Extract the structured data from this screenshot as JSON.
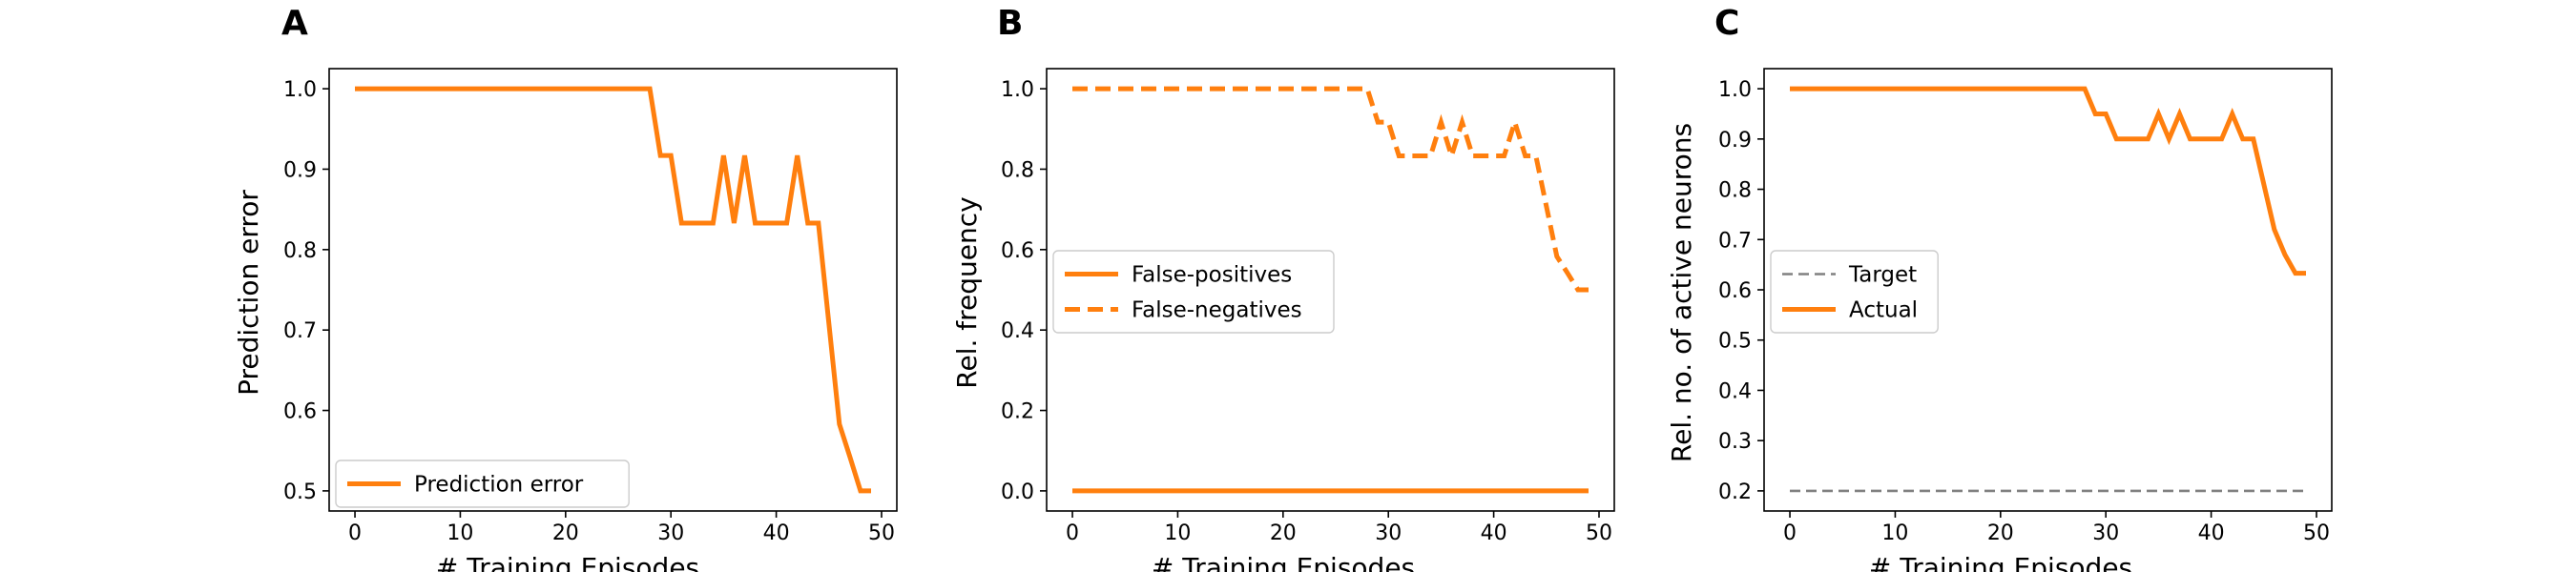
{
  "figure": {
    "colors": {
      "series": "#ff7f0e",
      "target": "#808080"
    }
  },
  "chart_data": [
    {
      "type": "line",
      "panel": "A",
      "xlabel": "# Training Episodes",
      "ylabel": "Prediction error",
      "xlim": [
        -2.45,
        51.45
      ],
      "ylim": [
        0.475,
        1.025
      ],
      "xticks": [
        0,
        10,
        20,
        30,
        40,
        50
      ],
      "yticks": [
        0.5,
        0.6,
        0.7,
        0.8,
        0.9,
        1.0
      ],
      "ytick_labels": [
        "0.5",
        "0.6",
        "0.7",
        "0.8",
        "0.9",
        "1.0"
      ],
      "grid": false,
      "legend_position": "lower-left",
      "x": [
        0,
        1,
        2,
        3,
        4,
        5,
        6,
        7,
        8,
        9,
        10,
        11,
        12,
        13,
        14,
        15,
        16,
        17,
        18,
        19,
        20,
        21,
        22,
        23,
        24,
        25,
        26,
        27,
        28,
        29,
        30,
        31,
        32,
        33,
        34,
        35,
        36,
        37,
        38,
        39,
        40,
        41,
        42,
        43,
        44,
        45,
        46,
        47,
        48,
        49
      ],
      "series": [
        {
          "name": "Prediction error",
          "style": "solid",
          "color": "#ff7f0e",
          "values": [
            1,
            1,
            1,
            1,
            1,
            1,
            1,
            1,
            1,
            1,
            1,
            1,
            1,
            1,
            1,
            1,
            1,
            1,
            1,
            1,
            1,
            1,
            1,
            1,
            1,
            1,
            1,
            1,
            1,
            0.917,
            0.917,
            0.833,
            0.833,
            0.833,
            0.833,
            0.917,
            0.833,
            0.917,
            0.833,
            0.833,
            0.833,
            0.833,
            0.917,
            0.833,
            0.833,
            0.708,
            0.583,
            0.542,
            0.5,
            0.5
          ]
        }
      ]
    },
    {
      "type": "line",
      "panel": "B",
      "xlabel": "# Training Episodes",
      "ylabel": "Rel. frequency",
      "xlim": [
        -2.45,
        51.45
      ],
      "ylim": [
        -0.05,
        1.05
      ],
      "xticks": [
        0,
        10,
        20,
        30,
        40,
        50
      ],
      "yticks": [
        0.0,
        0.2,
        0.4,
        0.6,
        0.8,
        1.0
      ],
      "ytick_labels": [
        "0.0",
        "0.2",
        "0.4",
        "0.6",
        "0.8",
        "1.0"
      ],
      "grid": false,
      "legend_position": "center-left",
      "x": [
        0,
        1,
        2,
        3,
        4,
        5,
        6,
        7,
        8,
        9,
        10,
        11,
        12,
        13,
        14,
        15,
        16,
        17,
        18,
        19,
        20,
        21,
        22,
        23,
        24,
        25,
        26,
        27,
        28,
        29,
        30,
        31,
        32,
        33,
        34,
        35,
        36,
        37,
        38,
        39,
        40,
        41,
        42,
        43,
        44,
        45,
        46,
        47,
        48,
        49
      ],
      "series": [
        {
          "name": "False-positives",
          "style": "solid",
          "color": "#ff7f0e",
          "values": [
            0,
            0,
            0,
            0,
            0,
            0,
            0,
            0,
            0,
            0,
            0,
            0,
            0,
            0,
            0,
            0,
            0,
            0,
            0,
            0,
            0,
            0,
            0,
            0,
            0,
            0,
            0,
            0,
            0,
            0,
            0,
            0,
            0,
            0,
            0,
            0,
            0,
            0,
            0,
            0,
            0,
            0,
            0,
            0,
            0,
            0,
            0,
            0,
            0,
            0
          ]
        },
        {
          "name": "False-negatives",
          "style": "dashed",
          "color": "#ff7f0e",
          "values": [
            1,
            1,
            1,
            1,
            1,
            1,
            1,
            1,
            1,
            1,
            1,
            1,
            1,
            1,
            1,
            1,
            1,
            1,
            1,
            1,
            1,
            1,
            1,
            1,
            1,
            1,
            1,
            1,
            1,
            0.917,
            0.917,
            0.833,
            0.833,
            0.833,
            0.833,
            0.917,
            0.833,
            0.917,
            0.833,
            0.833,
            0.833,
            0.833,
            0.917,
            0.833,
            0.833,
            0.708,
            0.583,
            0.542,
            0.5,
            0.5
          ]
        }
      ]
    },
    {
      "type": "line",
      "panel": "C",
      "xlabel": "# Training Episodes",
      "ylabel": "Rel. no. of active neurons",
      "xlim": [
        -2.45,
        51.45
      ],
      "ylim": [
        0.16,
        1.04
      ],
      "xticks": [
        0,
        10,
        20,
        30,
        40,
        50
      ],
      "yticks": [
        0.2,
        0.3,
        0.4,
        0.5,
        0.6,
        0.7,
        0.8,
        0.9,
        1.0
      ],
      "ytick_labels": [
        "0.2",
        "0.3",
        "0.4",
        "0.5",
        "0.6",
        "0.7",
        "0.8",
        "0.9",
        "1.0"
      ],
      "grid": false,
      "legend_position": "center-left",
      "x": [
        0,
        1,
        2,
        3,
        4,
        5,
        6,
        7,
        8,
        9,
        10,
        11,
        12,
        13,
        14,
        15,
        16,
        17,
        18,
        19,
        20,
        21,
        22,
        23,
        24,
        25,
        26,
        27,
        28,
        29,
        30,
        31,
        32,
        33,
        34,
        35,
        36,
        37,
        38,
        39,
        40,
        41,
        42,
        43,
        44,
        45,
        46,
        47,
        48,
        49
      ],
      "series": [
        {
          "name": "Target",
          "style": "dashed-thin",
          "color": "#808080",
          "values": [
            0.2,
            0.2,
            0.2,
            0.2,
            0.2,
            0.2,
            0.2,
            0.2,
            0.2,
            0.2,
            0.2,
            0.2,
            0.2,
            0.2,
            0.2,
            0.2,
            0.2,
            0.2,
            0.2,
            0.2,
            0.2,
            0.2,
            0.2,
            0.2,
            0.2,
            0.2,
            0.2,
            0.2,
            0.2,
            0.2,
            0.2,
            0.2,
            0.2,
            0.2,
            0.2,
            0.2,
            0.2,
            0.2,
            0.2,
            0.2,
            0.2,
            0.2,
            0.2,
            0.2,
            0.2,
            0.2,
            0.2,
            0.2,
            0.2,
            0.2
          ]
        },
        {
          "name": "Actual",
          "style": "solid",
          "color": "#ff7f0e",
          "values": [
            1,
            1,
            1,
            1,
            1,
            1,
            1,
            1,
            1,
            1,
            1,
            1,
            1,
            1,
            1,
            1,
            1,
            1,
            1,
            1,
            1,
            1,
            1,
            1,
            1,
            1,
            1,
            1,
            1,
            0.95,
            0.95,
            0.9,
            0.9,
            0.9,
            0.9,
            0.95,
            0.9,
            0.95,
            0.9,
            0.9,
            0.9,
            0.9,
            0.95,
            0.9,
            0.9,
            0.81,
            0.72,
            0.67,
            0.633,
            0.633
          ]
        }
      ]
    }
  ]
}
